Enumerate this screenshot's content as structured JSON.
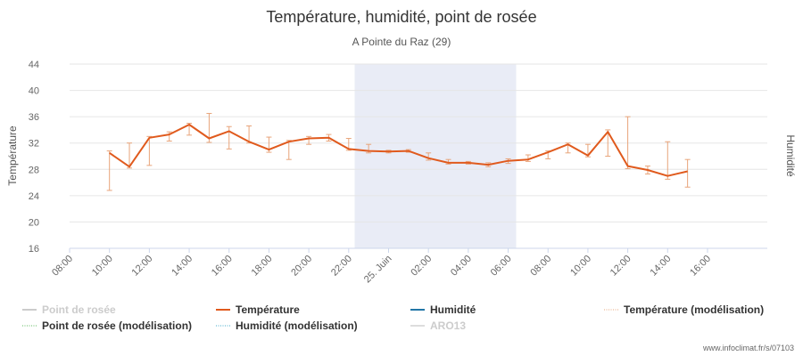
{
  "chart_data": {
    "type": "line",
    "title": "Température, humidité, point de rosée",
    "subtitle": "A Pointe du Raz (29)",
    "ylabel": "Température",
    "y2label": "Humidité",
    "ylim": [
      16,
      44
    ],
    "yticks": [
      "16",
      "20",
      "24",
      "28",
      "32",
      "36",
      "40",
      "44"
    ],
    "xticks": [
      "08:00",
      "10:00",
      "12:00",
      "14:00",
      "16:00",
      "18:00",
      "20:00",
      "22:00",
      "25. Juin",
      "02:00",
      "04:00",
      "06:00",
      "08:00",
      "10:00",
      "12:00",
      "14:00",
      "16:00"
    ],
    "night_band": {
      "from_hour": 22.3,
      "to_hour": 30.4
    },
    "series": [
      {
        "name": "Température",
        "color": "#e05a1d",
        "points": [
          [
            10,
            30.5
          ],
          [
            11,
            28.4
          ],
          [
            12,
            32.8
          ],
          [
            13,
            33.3
          ],
          [
            14,
            34.8
          ],
          [
            15,
            32.7
          ],
          [
            16,
            33.8
          ],
          [
            17,
            32.2
          ],
          [
            18,
            31.0
          ],
          [
            19,
            32.2
          ],
          [
            20,
            32.7
          ],
          [
            21,
            32.8
          ],
          [
            22,
            31.1
          ],
          [
            23,
            30.8
          ],
          [
            24,
            30.7
          ],
          [
            25,
            30.8
          ],
          [
            26,
            29.7
          ],
          [
            27,
            29.0
          ],
          [
            28,
            29.0
          ],
          [
            29,
            28.7
          ],
          [
            30,
            29.3
          ],
          [
            31,
            29.5
          ],
          [
            32,
            30.6
          ],
          [
            33,
            31.8
          ],
          [
            34,
            30.1
          ],
          [
            35,
            33.7
          ],
          [
            36,
            28.5
          ],
          [
            37,
            27.9
          ],
          [
            38,
            27.0
          ],
          [
            39,
            27.7
          ]
        ]
      }
    ],
    "error_bars": {
      "color": "#e8a47a",
      "ranges": [
        [
          10,
          24.8,
          30.8
        ],
        [
          11,
          28.2,
          32.0
        ],
        [
          12,
          28.6,
          33.0
        ],
        [
          13,
          32.3,
          33.7
        ],
        [
          14,
          33.2,
          35.0
        ],
        [
          15,
          32.1,
          36.5
        ],
        [
          16,
          31.1,
          34.5
        ],
        [
          17,
          32.0,
          34.6
        ],
        [
          18,
          30.6,
          32.9
        ],
        [
          19,
          29.5,
          32.4
        ],
        [
          20,
          31.8,
          33.0
        ],
        [
          21,
          32.3,
          33.3
        ],
        [
          22,
          30.9,
          32.7
        ],
        [
          23,
          30.5,
          31.8
        ],
        [
          24,
          30.5,
          30.9
        ],
        [
          25,
          30.6,
          31.0
        ],
        [
          26,
          29.4,
          30.5
        ],
        [
          27,
          28.8,
          29.5
        ],
        [
          28,
          28.8,
          29.2
        ],
        [
          29,
          28.4,
          29.0
        ],
        [
          30,
          28.9,
          29.6
        ],
        [
          31,
          29.2,
          30.2
        ],
        [
          32,
          29.6,
          30.8
        ],
        [
          33,
          30.5,
          32.0
        ],
        [
          34,
          29.9,
          31.8
        ],
        [
          35,
          30.0,
          34.0
        ],
        [
          36,
          28.1,
          36.0
        ],
        [
          37,
          27.3,
          28.5
        ],
        [
          38,
          26.5,
          32.2
        ],
        [
          39,
          25.3,
          29.5
        ]
      ]
    },
    "legend": [
      {
        "label": "Point de rosée",
        "color": "#cccccc",
        "style": "solid",
        "hidden": true
      },
      {
        "label": "Température",
        "color": "#e05a1d",
        "style": "solid",
        "hidden": false
      },
      {
        "label": "Humidité",
        "color": "#2276a7",
        "style": "solid",
        "hidden": false
      },
      {
        "label": "Température (modélisation)",
        "color": "#e8a47a",
        "style": "dotted",
        "hidden": false
      },
      {
        "label": "Point de rosée (modélisation)",
        "color": "#5cb85c",
        "style": "dotted",
        "hidden": false
      },
      {
        "label": "Humidité (modélisation)",
        "color": "#3fa9c9",
        "style": "dotted",
        "hidden": false
      },
      {
        "label": "ARO13",
        "color": "#dddddd",
        "style": "solid",
        "hidden": true
      }
    ],
    "legend_placement": "bottom",
    "grid": true,
    "credit": "www.infoclimat.fr/s/07103"
  }
}
